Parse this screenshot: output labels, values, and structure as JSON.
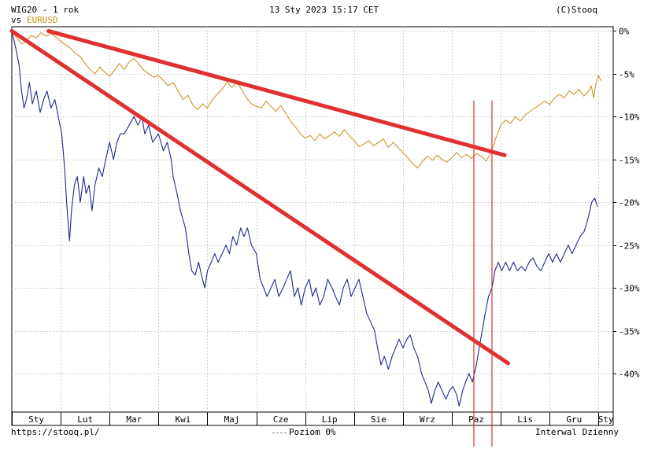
{
  "header": {
    "series_name": "WIG20",
    "period": "1 rok",
    "vs_label": "vs",
    "compare_symbol": "EURUSD",
    "timestamp": "13 Sty 2023 15:17 CET",
    "copyright": "(C)Stooq"
  },
  "footer": {
    "url": "https://stooq.pl/",
    "baseline_label": "Poziom 0%",
    "interval_label": "Interwal Dzienny"
  },
  "colors": {
    "primary_series": "#1f2a8c",
    "compare_series": "#d09428",
    "trendlines": "#e03030",
    "vertical_markers": "#e03030",
    "grid": "#d0d0d0",
    "axis": "#000000"
  },
  "chart_data": {
    "type": "line",
    "title": "WIG20 - 1 rok vs EURUSD",
    "xlabel": "",
    "ylabel": "",
    "x_ticks": [
      "Sty",
      "Lut",
      "Mar",
      "Kwi",
      "Maj",
      "Cze",
      "Lip",
      "Sie",
      "Wrz",
      "Paz",
      "Lis",
      "Gru",
      "Sty"
    ],
    "x_tick_positions": [
      0,
      1,
      2,
      3,
      4,
      5,
      6,
      7,
      8,
      9,
      10,
      11,
      12
    ],
    "y_ticks": [
      "0%",
      "-5%",
      "-10%",
      "-15%",
      "-20%",
      "-25%",
      "-30%",
      "-35%",
      "-40%"
    ],
    "ylim": [
      -44.5,
      0.5
    ],
    "xlim": [
      0,
      12.3
    ],
    "y_unit": "%",
    "grid": true,
    "series": [
      {
        "name": "WIG20",
        "values": [
          [
            0.0,
            0.0
          ],
          [
            0.08,
            -2
          ],
          [
            0.15,
            -4
          ],
          [
            0.2,
            -7
          ],
          [
            0.25,
            -9
          ],
          [
            0.3,
            -8
          ],
          [
            0.36,
            -6
          ],
          [
            0.42,
            -8.5
          ],
          [
            0.5,
            -7
          ],
          [
            0.58,
            -9.5
          ],
          [
            0.65,
            -8
          ],
          [
            0.72,
            -7
          ],
          [
            0.8,
            -9
          ],
          [
            0.88,
            -8
          ],
          [
            0.95,
            -10
          ],
          [
            1.02,
            -12
          ],
          [
            1.08,
            -16
          ],
          [
            1.12,
            -20
          ],
          [
            1.18,
            -24.5
          ],
          [
            1.22,
            -21
          ],
          [
            1.28,
            -18
          ],
          [
            1.34,
            -17
          ],
          [
            1.4,
            -20
          ],
          [
            1.47,
            -17
          ],
          [
            1.52,
            -19
          ],
          [
            1.58,
            -18
          ],
          [
            1.64,
            -21
          ],
          [
            1.7,
            -18
          ],
          [
            1.78,
            -16
          ],
          [
            1.85,
            -17
          ],
          [
            1.92,
            -15
          ],
          [
            2.0,
            -13
          ],
          [
            2.08,
            -15
          ],
          [
            2.15,
            -13
          ],
          [
            2.22,
            -12
          ],
          [
            2.3,
            -12
          ],
          [
            2.4,
            -11
          ],
          [
            2.5,
            -10
          ],
          [
            2.58,
            -11
          ],
          [
            2.66,
            -10
          ],
          [
            2.72,
            -12
          ],
          [
            2.8,
            -11
          ],
          [
            2.88,
            -13
          ],
          [
            3.0,
            -12
          ],
          [
            3.1,
            -14
          ],
          [
            3.18,
            -13
          ],
          [
            3.26,
            -15
          ],
          [
            3.3,
            -17
          ],
          [
            3.38,
            -19
          ],
          [
            3.45,
            -21
          ],
          [
            3.55,
            -23
          ],
          [
            3.62,
            -26
          ],
          [
            3.68,
            -28
          ],
          [
            3.75,
            -28.5
          ],
          [
            3.82,
            -27
          ],
          [
            3.9,
            -29
          ],
          [
            3.95,
            -30
          ],
          [
            4.0,
            -28
          ],
          [
            4.08,
            -27
          ],
          [
            4.15,
            -26
          ],
          [
            4.22,
            -27
          ],
          [
            4.3,
            -26
          ],
          [
            4.38,
            -25
          ],
          [
            4.45,
            -26
          ],
          [
            4.52,
            -24
          ],
          [
            4.6,
            -25
          ],
          [
            4.68,
            -23
          ],
          [
            4.75,
            -24
          ],
          [
            4.82,
            -23
          ],
          [
            4.9,
            -25
          ],
          [
            5.0,
            -26
          ],
          [
            5.08,
            -29
          ],
          [
            5.15,
            -30
          ],
          [
            5.22,
            -31
          ],
          [
            5.3,
            -30
          ],
          [
            5.38,
            -29
          ],
          [
            5.46,
            -31
          ],
          [
            5.55,
            -30
          ],
          [
            5.62,
            -29
          ],
          [
            5.7,
            -28
          ],
          [
            5.78,
            -31
          ],
          [
            5.85,
            -30
          ],
          [
            5.92,
            -32
          ],
          [
            6.0,
            -30
          ],
          [
            6.08,
            -29
          ],
          [
            6.15,
            -31
          ],
          [
            6.22,
            -30
          ],
          [
            6.3,
            -32
          ],
          [
            6.38,
            -31
          ],
          [
            6.46,
            -29
          ],
          [
            6.55,
            -30
          ],
          [
            6.62,
            -31
          ],
          [
            6.7,
            -32
          ],
          [
            6.78,
            -30
          ],
          [
            6.86,
            -29
          ],
          [
            6.94,
            -31
          ],
          [
            7.02,
            -30
          ],
          [
            7.1,
            -29
          ],
          [
            7.18,
            -31
          ],
          [
            7.26,
            -33
          ],
          [
            7.34,
            -34
          ],
          [
            7.42,
            -35
          ],
          [
            7.48,
            -37
          ],
          [
            7.55,
            -39
          ],
          [
            7.62,
            -38
          ],
          [
            7.7,
            -39.5
          ],
          [
            7.78,
            -38
          ],
          [
            7.85,
            -37
          ],
          [
            7.92,
            -36
          ],
          [
            8.0,
            -37
          ],
          [
            8.08,
            -36
          ],
          [
            8.15,
            -35.5
          ],
          [
            8.22,
            -37
          ],
          [
            8.3,
            -38
          ],
          [
            8.38,
            -40
          ],
          [
            8.45,
            -41
          ],
          [
            8.52,
            -42
          ],
          [
            8.58,
            -43.5
          ],
          [
            8.65,
            -42
          ],
          [
            8.72,
            -41
          ],
          [
            8.8,
            -42
          ],
          [
            8.88,
            -43
          ],
          [
            8.95,
            -42
          ],
          [
            9.02,
            -41.5
          ],
          [
            9.1,
            -42.5
          ],
          [
            9.15,
            -43.8
          ],
          [
            9.22,
            -42
          ],
          [
            9.28,
            -41
          ],
          [
            9.35,
            -40
          ],
          [
            9.42,
            -41
          ],
          [
            9.5,
            -39
          ],
          [
            9.56,
            -37
          ],
          [
            9.62,
            -35
          ],
          [
            9.68,
            -33
          ],
          [
            9.75,
            -31
          ],
          [
            9.82,
            -30
          ],
          [
            9.88,
            -28
          ],
          [
            9.95,
            -27
          ],
          [
            10.02,
            -28
          ],
          [
            10.1,
            -27
          ],
          [
            10.18,
            -28
          ],
          [
            10.26,
            -27
          ],
          [
            10.34,
            -28
          ],
          [
            10.42,
            -27.5
          ],
          [
            10.5,
            -28
          ],
          [
            10.58,
            -27
          ],
          [
            10.66,
            -26.5
          ],
          [
            10.74,
            -27.5
          ],
          [
            10.82,
            -28
          ],
          [
            10.9,
            -27
          ],
          [
            10.98,
            -26
          ],
          [
            11.06,
            -27
          ],
          [
            11.14,
            -26
          ],
          [
            11.22,
            -27
          ],
          [
            11.3,
            -26
          ],
          [
            11.38,
            -25
          ],
          [
            11.46,
            -26
          ],
          [
            11.54,
            -25
          ],
          [
            11.62,
            -24
          ],
          [
            11.7,
            -23.5
          ],
          [
            11.78,
            -22
          ],
          [
            11.86,
            -20
          ],
          [
            11.92,
            -19.5
          ],
          [
            11.98,
            -20.5
          ]
        ]
      },
      {
        "name": "EURUSD",
        "values": [
          [
            0.0,
            0.0
          ],
          [
            0.1,
            -0.8
          ],
          [
            0.2,
            -1.5
          ],
          [
            0.3,
            -1.2
          ],
          [
            0.4,
            -0.5
          ],
          [
            0.5,
            -0.8
          ],
          [
            0.6,
            -0.2
          ],
          [
            0.7,
            -0.6
          ],
          [
            0.8,
            -0.3
          ],
          [
            0.9,
            -0.7
          ],
          [
            1.0,
            -1.2
          ],
          [
            1.1,
            -1.6
          ],
          [
            1.2,
            -2
          ],
          [
            1.3,
            -2.6
          ],
          [
            1.4,
            -3
          ],
          [
            1.5,
            -3.8
          ],
          [
            1.6,
            -4.5
          ],
          [
            1.7,
            -5
          ],
          [
            1.8,
            -4.2
          ],
          [
            1.9,
            -4.8
          ],
          [
            2.0,
            -5.3
          ],
          [
            2.1,
            -4.6
          ],
          [
            2.2,
            -3.8
          ],
          [
            2.3,
            -4.5
          ],
          [
            2.4,
            -3.6
          ],
          [
            2.5,
            -3.2
          ],
          [
            2.6,
            -3.9
          ],
          [
            2.7,
            -4.6
          ],
          [
            2.8,
            -5
          ],
          [
            2.9,
            -5.4
          ],
          [
            3.0,
            -5.2
          ],
          [
            3.1,
            -5.8
          ],
          [
            3.2,
            -6.4
          ],
          [
            3.3,
            -6
          ],
          [
            3.4,
            -7
          ],
          [
            3.5,
            -8
          ],
          [
            3.6,
            -7.5
          ],
          [
            3.7,
            -8.6
          ],
          [
            3.8,
            -9.2
          ],
          [
            3.9,
            -8.5
          ],
          [
            4.0,
            -9
          ],
          [
            4.1,
            -8
          ],
          [
            4.2,
            -7.4
          ],
          [
            4.3,
            -6.8
          ],
          [
            4.4,
            -6
          ],
          [
            4.5,
            -6.6
          ],
          [
            4.6,
            -6
          ],
          [
            4.7,
            -6.8
          ],
          [
            4.8,
            -7.8
          ],
          [
            4.9,
            -8.5
          ],
          [
            5.0,
            -8.8
          ],
          [
            5.1,
            -9
          ],
          [
            5.2,
            -8.2
          ],
          [
            5.3,
            -8.8
          ],
          [
            5.4,
            -9.4
          ],
          [
            5.5,
            -8.7
          ],
          [
            5.6,
            -9.6
          ],
          [
            5.7,
            -10.5
          ],
          [
            5.8,
            -11.2
          ],
          [
            5.9,
            -12
          ],
          [
            6.0,
            -12.5
          ],
          [
            6.1,
            -12.2
          ],
          [
            6.2,
            -12.8
          ],
          [
            6.3,
            -12
          ],
          [
            6.4,
            -12.6
          ],
          [
            6.5,
            -12.2
          ],
          [
            6.6,
            -11.8
          ],
          [
            6.7,
            -12.3
          ],
          [
            6.8,
            -11.5
          ],
          [
            6.9,
            -12.2
          ],
          [
            7.0,
            -12.8
          ],
          [
            7.1,
            -13.5
          ],
          [
            7.2,
            -13.2
          ],
          [
            7.3,
            -12.8
          ],
          [
            7.4,
            -13.4
          ],
          [
            7.5,
            -13.0
          ],
          [
            7.6,
            -12.6
          ],
          [
            7.7,
            -13.6
          ],
          [
            7.8,
            -13.0
          ],
          [
            7.9,
            -13.6
          ],
          [
            8.0,
            -14.2
          ],
          [
            8.1,
            -14.8
          ],
          [
            8.2,
            -15.5
          ],
          [
            8.3,
            -16
          ],
          [
            8.4,
            -15.2
          ],
          [
            8.5,
            -14.6
          ],
          [
            8.6,
            -15.1
          ],
          [
            8.7,
            -14.5
          ],
          [
            8.8,
            -15
          ],
          [
            8.9,
            -15.3
          ],
          [
            9.0,
            -14.8
          ],
          [
            9.1,
            -14.2
          ],
          [
            9.2,
            -14.8
          ],
          [
            9.3,
            -14.4
          ],
          [
            9.4,
            -14.9
          ],
          [
            9.5,
            -14.3
          ],
          [
            9.6,
            -14.6
          ],
          [
            9.7,
            -15.2
          ],
          [
            9.8,
            -14.2
          ],
          [
            9.9,
            -12.5
          ],
          [
            10.0,
            -11
          ],
          [
            10.1,
            -10.4
          ],
          [
            10.2,
            -10.8
          ],
          [
            10.3,
            -10
          ],
          [
            10.4,
            -10.5
          ],
          [
            10.5,
            -9.8
          ],
          [
            10.6,
            -9.4
          ],
          [
            10.7,
            -9
          ],
          [
            10.8,
            -8.6
          ],
          [
            10.9,
            -8.2
          ],
          [
            11.0,
            -8.6
          ],
          [
            11.1,
            -7.8
          ],
          [
            11.2,
            -7.4
          ],
          [
            11.3,
            -7.8
          ],
          [
            11.4,
            -7.0
          ],
          [
            11.5,
            -7.4
          ],
          [
            11.6,
            -6.8
          ],
          [
            11.7,
            -7.6
          ],
          [
            11.8,
            -7.0
          ],
          [
            11.85,
            -6.4
          ],
          [
            11.9,
            -7.8
          ],
          [
            11.95,
            -6.0
          ],
          [
            12.0,
            -5.2
          ],
          [
            12.05,
            -5.8
          ]
        ]
      }
    ],
    "annotations": [
      {
        "kind": "trendline",
        "from": [
          0.0,
          0.0
        ],
        "to": [
          10.15,
          -38.8
        ]
      },
      {
        "kind": "trendline",
        "from": [
          0.75,
          0.0
        ],
        "to": [
          10.08,
          -14.5
        ]
      },
      {
        "kind": "vertical_line",
        "x": 9.45
      },
      {
        "kind": "vertical_line",
        "x": 9.82
      }
    ]
  }
}
